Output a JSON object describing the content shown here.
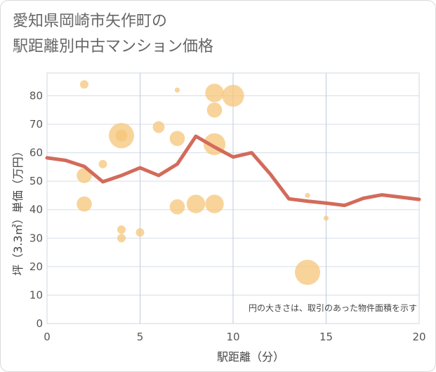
{
  "title_line1": "愛知県岡崎市矢作町の",
  "title_line2": "駅距離別中古マンション価格",
  "chart_data": {
    "type": "scatter",
    "xlabel": "駅距離（分）",
    "ylabel": "坪（3.3㎡）単価（万円）",
    "xlim": [
      0,
      20
    ],
    "ylim": [
      0,
      88
    ],
    "xticks": [
      0,
      5,
      10,
      15,
      20
    ],
    "yticks": [
      0,
      10,
      20,
      30,
      40,
      50,
      60,
      70,
      80
    ],
    "note": "円の大きさは、取引のあった物件面積を示す",
    "bubble_color": "#f5c57a",
    "line_color": "#d36b5a",
    "grid": true,
    "bubbles": [
      {
        "x": 2,
        "y": 84,
        "size": 2
      },
      {
        "x": 2,
        "y": 52,
        "size": 4
      },
      {
        "x": 2,
        "y": 42,
        "size": 4
      },
      {
        "x": 3,
        "y": 56,
        "size": 2
      },
      {
        "x": 4,
        "y": 66,
        "size": 7
      },
      {
        "x": 4,
        "y": 66,
        "size": 3
      },
      {
        "x": 4,
        "y": 33,
        "size": 2
      },
      {
        "x": 4,
        "y": 30,
        "size": 2
      },
      {
        "x": 5,
        "y": 32,
        "size": 2
      },
      {
        "x": 6,
        "y": 69,
        "size": 3
      },
      {
        "x": 7,
        "y": 82,
        "size": 1
      },
      {
        "x": 7,
        "y": 65,
        "size": 4
      },
      {
        "x": 7,
        "y": 41,
        "size": 4
      },
      {
        "x": 8,
        "y": 42,
        "size": 5
      },
      {
        "x": 9,
        "y": 81,
        "size": 5
      },
      {
        "x": 9,
        "y": 75,
        "size": 4
      },
      {
        "x": 9,
        "y": 63,
        "size": 6
      },
      {
        "x": 9,
        "y": 42,
        "size": 5
      },
      {
        "x": 10,
        "y": 80,
        "size": 6
      },
      {
        "x": 14,
        "y": 45,
        "size": 1
      },
      {
        "x": 14,
        "y": 18,
        "size": 7
      },
      {
        "x": 15,
        "y": 37,
        "size": 1
      }
    ],
    "line": {
      "x": [
        0,
        1,
        2,
        3,
        4,
        5,
        6,
        7,
        8,
        9,
        10,
        11,
        12,
        13,
        14,
        15,
        16,
        17,
        18,
        19,
        20
      ],
      "y": [
        58.2,
        57.3,
        55.2,
        49.8,
        52.0,
        54.7,
        52.0,
        56.0,
        65.8,
        62.0,
        58.5,
        60.0,
        52.5,
        43.8,
        43.0,
        42.3,
        41.5,
        44.0,
        45.2,
        44.4,
        43.6
      ]
    }
  }
}
